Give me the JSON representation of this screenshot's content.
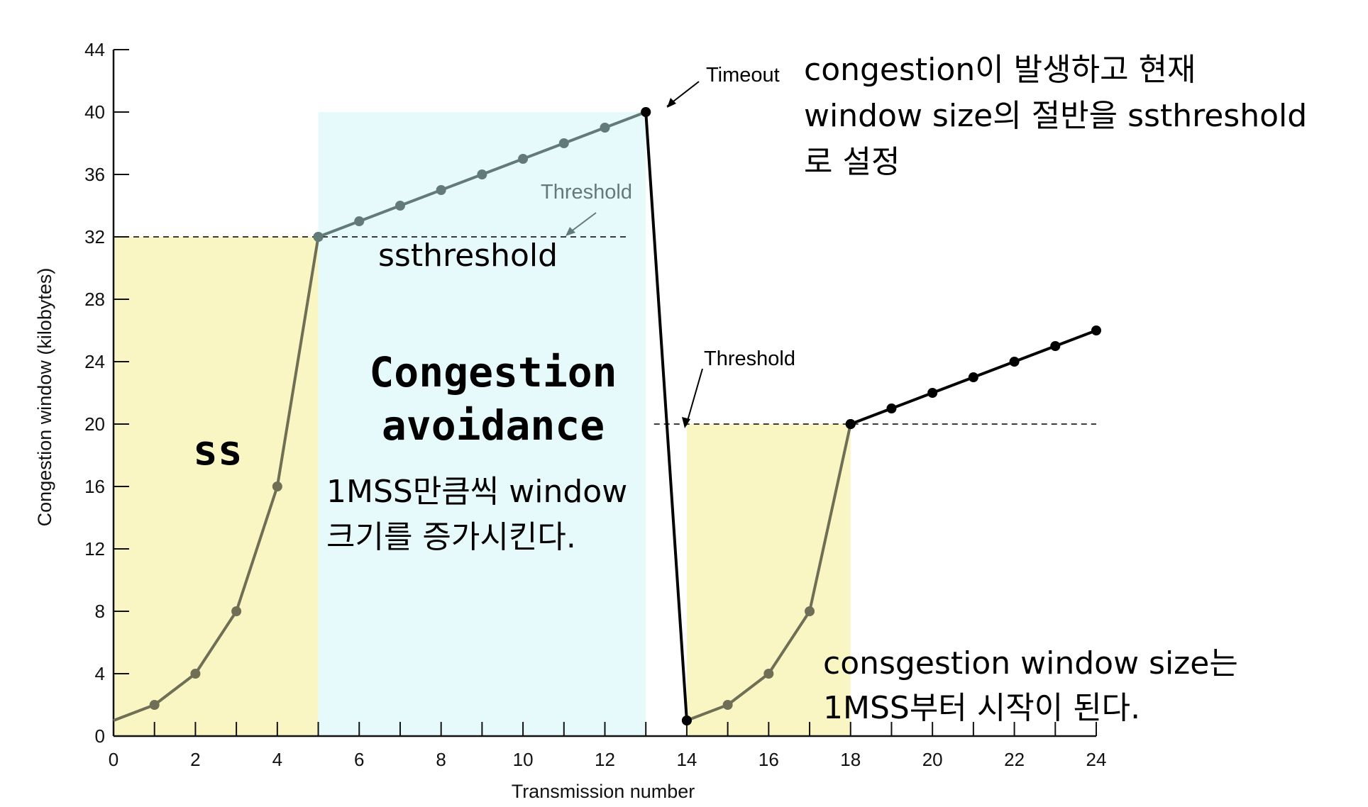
{
  "chart_data": {
    "type": "line",
    "xlabel": "Transmission number",
    "ylabel": "Congestion window (kilobytes)",
    "xlim": [
      0,
      24
    ],
    "ylim": [
      0,
      44
    ],
    "x_ticks": [
      0,
      2,
      4,
      6,
      8,
      10,
      12,
      14,
      16,
      18,
      20,
      22,
      24
    ],
    "y_ticks": [
      0,
      4,
      8,
      12,
      16,
      20,
      24,
      28,
      32,
      36,
      40,
      44
    ],
    "series": [
      {
        "color": "#6e6f55",
        "points": [
          [
            0,
            1
          ],
          [
            1,
            2
          ],
          [
            2,
            4
          ],
          [
            3,
            8
          ],
          [
            4,
            16
          ],
          [
            5,
            32
          ]
        ]
      },
      {
        "color": "#627a78",
        "points": [
          [
            5,
            32
          ],
          [
            6,
            33
          ],
          [
            7,
            34
          ],
          [
            8,
            35
          ],
          [
            9,
            36
          ],
          [
            10,
            37
          ],
          [
            11,
            38
          ],
          [
            12,
            39
          ],
          [
            13,
            40
          ]
        ]
      },
      {
        "color": "#000000",
        "points": [
          [
            13,
            40
          ],
          [
            14,
            1
          ]
        ]
      },
      {
        "color": "#6e6f55",
        "points": [
          [
            14,
            1
          ],
          [
            15,
            2
          ],
          [
            16,
            4
          ],
          [
            17,
            8
          ],
          [
            18,
            20
          ]
        ]
      },
      {
        "color": "#000000",
        "points": [
          [
            18,
            20
          ],
          [
            19,
            21
          ],
          [
            20,
            22
          ],
          [
            21,
            23
          ],
          [
            22,
            24
          ],
          [
            23,
            25
          ],
          [
            24,
            26
          ]
        ]
      }
    ],
    "thresholds": [
      {
        "label": "Threshold",
        "value": 32,
        "x_range": [
          0,
          12.6
        ]
      },
      {
        "label": "Threshold",
        "value": 20,
        "x_range": [
          13.2,
          24
        ]
      }
    ],
    "regions": [
      {
        "x_range": [
          0,
          5
        ],
        "y_range": [
          0,
          32
        ],
        "color": "#faf6c4"
      },
      {
        "x_range": [
          5,
          13
        ],
        "y_range": [
          0,
          40
        ],
        "color": "#e6fafc"
      },
      {
        "x_range": [
          14,
          18
        ],
        "y_range": [
          0,
          20
        ],
        "color": "#faf6c4"
      }
    ],
    "annotations": {
      "timeout": "Timeout",
      "threshold_1": "Threshold",
      "threshold_2": "Threshold",
      "ssthreshold": "ssthreshold",
      "ss": "ss",
      "congestion_avoidance_1": "Congestion",
      "congestion_avoidance_2": "avoidance",
      "avoidance_note_1": "1MSS만큼씩 window",
      "avoidance_note_2": "크기를 증가시킨다.",
      "timeout_note_1": "congestion이 발생하고 현재",
      "timeout_note_2": "window size의 절반을 ssthreshold",
      "timeout_note_3": "로 설정",
      "restart_note_1": "consgestion window size는",
      "restart_note_2": "1MSS부터 시작이 된다."
    }
  }
}
